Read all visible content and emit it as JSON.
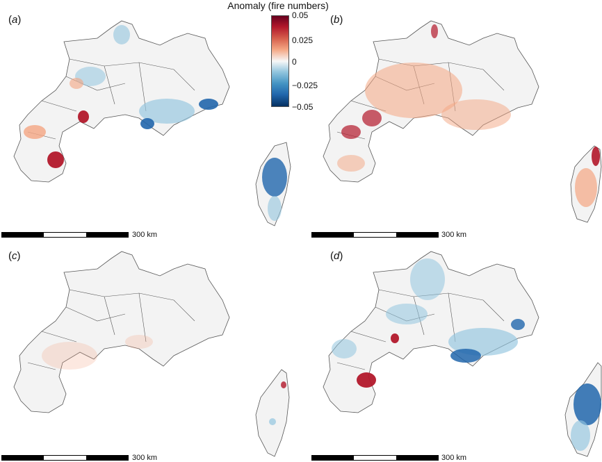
{
  "colorbar": {
    "title": "Anomaly (fire numbers)",
    "ticks": [
      "0.05",
      "0.025",
      "0",
      "−0.025",
      "−0.05"
    ],
    "colormap": [
      "#67001f",
      "#b2182b",
      "#d6604d",
      "#f4a582",
      "#f7f7f7",
      "#92c5de",
      "#4393c3",
      "#2166ac",
      "#053061"
    ]
  },
  "panels": [
    {
      "label": "a",
      "scale_label": "300 km",
      "dominant": "mixed"
    },
    {
      "label": "b",
      "scale_label": "300 km",
      "dominant": "positive"
    },
    {
      "label": "c",
      "scale_label": "300 km",
      "dominant": "near-zero"
    },
    {
      "label": "d",
      "scale_label": "300 km",
      "dominant": "mixed"
    }
  ],
  "colors": {
    "land": "#f3f3f3",
    "border": "#555555",
    "positive": "#b2182b",
    "positive_light": "#f4a582",
    "negative": "#2166ac",
    "negative_light": "#92c5de"
  }
}
